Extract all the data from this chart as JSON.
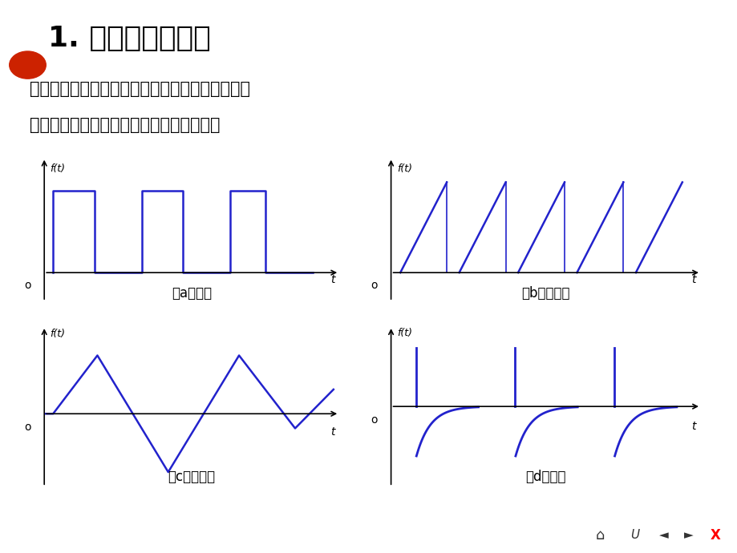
{
  "title": "1. 非正弦周期信号",
  "subtitle_line1": "在通信工程方面传输的各种信号，例如收音机、电",
  "subtitle_line2": "视机等收到的信号，其波形都是非正弦的。",
  "bg_color": "#FFFFFF",
  "header_bar_color": "#909090",
  "title_color": "#000000",
  "text_color": "#000000",
  "wave_color": "#2222CC",
  "axis_color": "#000000",
  "label_a": "（a）方波",
  "label_b": "（b）锯齿波",
  "label_c": "（c）三角波",
  "label_d": "（d）脉冲",
  "ft_label": "f(t)",
  "t_label": "t",
  "o_label": "o",
  "nav_bg": "#A8C8D8",
  "red_circle_color": "#CC2200"
}
